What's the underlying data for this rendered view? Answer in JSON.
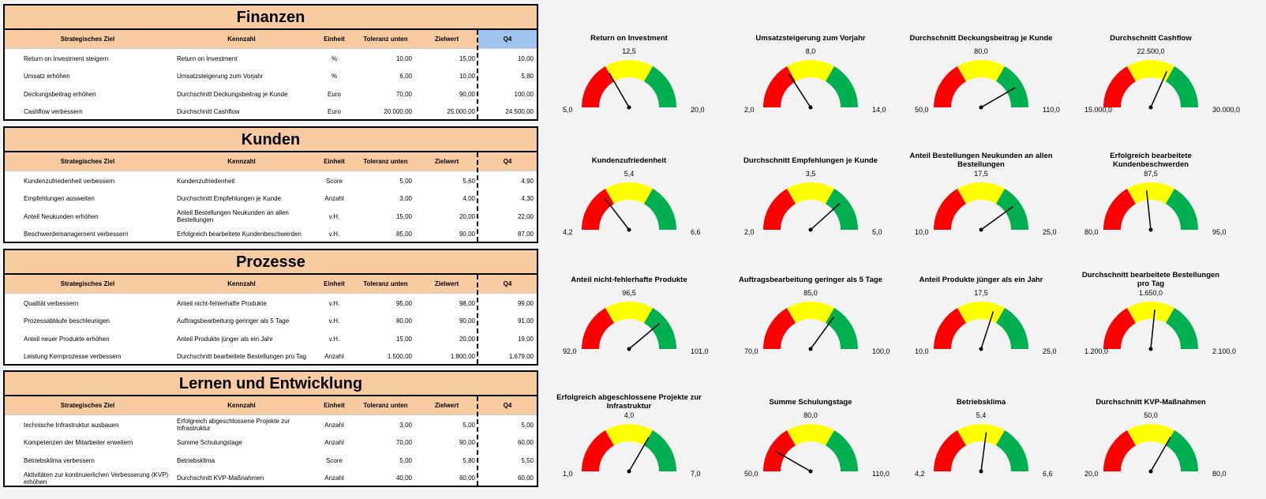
{
  "columns": [
    "Strategisches Ziel",
    "Kennzahl",
    "Einheit",
    "Toleranz unten",
    "Zielwert",
    "Q4"
  ],
  "sections": [
    {
      "title": "Finanzen",
      "rows": [
        [
          "Return on Investment steigern",
          "Return on Investment",
          "%",
          "10,00",
          "15,00",
          "10,00"
        ],
        [
          "Umsatz erhöhen",
          "Umsatzsteigerung zum Vorjahr",
          "%",
          "6,00",
          "10,00",
          "5,80"
        ],
        [
          "Deckungsbeitrag erhöhen",
          "Durchschnitt Deckungsbeitrag je Kunde",
          "Euro",
          "70,00",
          "90,00",
          "100,00"
        ],
        [
          "Cashflow verbessern",
          "Durchschnitt Cashflow",
          "Euro",
          "20.000,00",
          "25.000,00",
          "24.500,00"
        ]
      ]
    },
    {
      "title": "Kunden",
      "rows": [
        [
          "Kundenzufriedenheit verbessern",
          "Kundenzufriedenheit",
          "Score",
          "5,00",
          "5,60",
          "4,90"
        ],
        [
          "Empfehlungen ausweiten",
          "Durchschnitt Empfehlungen je Kunde",
          "Anzahl",
          "3,00",
          "4,00",
          "4,30"
        ],
        [
          "Anteil Neukunden erhöhen",
          "Anteil Bestellungen Neukunden an allen Bestellungen",
          "v.H.",
          "15,00",
          "20,00",
          "22,00"
        ],
        [
          "Beschwerdemanagement verbessern",
          "Erfolgreich bearbeitete Kundenbeschwerden",
          "v.H.",
          "85,00",
          "90,00",
          "87,00"
        ]
      ]
    },
    {
      "title": "Prozesse",
      "rows": [
        [
          "Qualität verbessern",
          "Anteil nicht-fehlerhafte Produkte",
          "v.H.",
          "95,00",
          "98,00",
          "99,00"
        ],
        [
          "Prozessabläufe beschleunigen",
          "Auftragsbearbeitung geringer als 5 Tage",
          "v.H.",
          "80,00",
          "90,00",
          "91,00"
        ],
        [
          "Anteil neuer Produkte erhöhen",
          "Anteil Produkte jünger als ein Jahr",
          "v.H.",
          "15,00",
          "20,00",
          "19,00"
        ],
        [
          "Leistung Kernprozesse verbessern",
          "Durchschnitt bearbeitete Bestellungen pro Tag",
          "Anzahl",
          "1.500,00",
          "1.800,00",
          "1.679,00"
        ]
      ]
    },
    {
      "title": "Lernen und Entwicklung",
      "rows": [
        [
          "technische Infrastruktur ausbauen",
          "Erfolgreich abgeschlossene Projekte zur Infrastruktur",
          "Anzahl",
          "3,00",
          "5,00",
          "5,00"
        ],
        [
          "Kompetenzen der Mitarbeiter erweitern",
          "Summe Schulungstage",
          "Anzahl",
          "70,00",
          "90,00",
          "60,00"
        ],
        [
          "Betriebsklima verbessern",
          "Betriebsklima",
          "Score",
          "5,00",
          "5,80",
          "5,50"
        ],
        [
          "Aktivitäten zur kontinuierlichen Verbesserung (KVP) erhöhen",
          "Durchschnitt KVP-Maßnahmen",
          "Anzahl",
          "40,00",
          "60,00",
          "60,00"
        ]
      ]
    }
  ],
  "gauges": [
    {
      "title": "Return on Investment",
      "min": {
        "value": 5,
        "label": "5,0"
      },
      "mid": {
        "value": 12.5,
        "label": "12,5"
      },
      "max": {
        "value": 20,
        "label": "20,0"
      },
      "value": 10
    },
    {
      "title": "Umsatzsteigerung zum Vorjahr",
      "min": {
        "value": 2,
        "label": "2,0"
      },
      "mid": {
        "value": 8,
        "label": "8,0"
      },
      "max": {
        "value": 14,
        "label": "14,0"
      },
      "value": 5.8
    },
    {
      "title": "Durchschnitt Deckungsbeitrag je Kunde",
      "min": {
        "value": 50,
        "label": "50,0"
      },
      "mid": {
        "value": 80,
        "label": "80,0"
      },
      "max": {
        "value": 110,
        "label": "110,0"
      },
      "value": 100
    },
    {
      "title": "Durchschnitt Cashflow",
      "min": {
        "value": 15000,
        "label": "15.000,0"
      },
      "mid": {
        "value": 22500,
        "label": "22.500,0"
      },
      "max": {
        "value": 30000,
        "label": "30.000,0"
      },
      "value": 24500
    },
    {
      "title": "Kundenzufriedenheit",
      "min": {
        "value": 4.2,
        "label": "4,2"
      },
      "mid": {
        "value": 5.4,
        "label": "5,4"
      },
      "max": {
        "value": 6.6,
        "label": "6,6"
      },
      "value": 4.9
    },
    {
      "title": "Durchschnitt Empfehlungen je Kunde",
      "min": {
        "value": 2,
        "label": "2,0"
      },
      "mid": {
        "value": 3.5,
        "label": "3,5"
      },
      "max": {
        "value": 5,
        "label": "5,0"
      },
      "value": 4.3
    },
    {
      "title": "Anteil Bestellungen Neukunden an allen Bestellungen",
      "min": {
        "value": 10,
        "label": "10,0"
      },
      "mid": {
        "value": 17.5,
        "label": "17,5"
      },
      "max": {
        "value": 25,
        "label": "25,0"
      },
      "value": 22
    },
    {
      "title": "Erfolgreich bearbeitete Kundenbeschwerden",
      "min": {
        "value": 80,
        "label": "80,0"
      },
      "mid": {
        "value": 87.5,
        "label": "87,5"
      },
      "max": {
        "value": 95,
        "label": "95,0"
      },
      "value": 87
    },
    {
      "title": "Anteil nicht-fehlerhafte Produkte",
      "min": {
        "value": 92,
        "label": "92,0"
      },
      "mid": {
        "value": 96.5,
        "label": "96,5"
      },
      "max": {
        "value": 101,
        "label": "101,0"
      },
      "value": 99
    },
    {
      "title": "Auftragsbearbeitung geringer als 5 Tage",
      "min": {
        "value": 70,
        "label": "70,0"
      },
      "mid": {
        "value": 85,
        "label": "85,0"
      },
      "max": {
        "value": 100,
        "label": "100,0"
      },
      "value": 91
    },
    {
      "title": "Anteil Produkte jünger als ein Jahr",
      "min": {
        "value": 10,
        "label": "10,0"
      },
      "mid": {
        "value": 17.5,
        "label": "17,5"
      },
      "max": {
        "value": 25,
        "label": "25,0"
      },
      "value": 19
    },
    {
      "title": "Durchschnitt bearbeitete Bestellungen pro Tag",
      "min": {
        "value": 1200,
        "label": "1.200,0"
      },
      "mid": {
        "value": 1650,
        "label": "1.650,0"
      },
      "max": {
        "value": 2100,
        "label": "2.100,0"
      },
      "value": 1679
    },
    {
      "title": "Erfolgreich abgeschlossene Projekte zur Infrastruktur",
      "min": {
        "value": 1,
        "label": "1,0"
      },
      "mid": {
        "value": 4,
        "label": "4,0"
      },
      "max": {
        "value": 7,
        "label": "7,0"
      },
      "value": 5
    },
    {
      "title": "Summe Schulungstage",
      "min": {
        "value": 50,
        "label": "50,0"
      },
      "mid": {
        "value": 80,
        "label": "80,0"
      },
      "max": {
        "value": 110,
        "label": "110,0"
      },
      "value": 60
    },
    {
      "title": "Betriebsklima",
      "min": {
        "value": 4.2,
        "label": "4,2"
      },
      "mid": {
        "value": 5.4,
        "label": "5,4"
      },
      "max": {
        "value": 6.6,
        "label": "6,6"
      },
      "value": 5.5
    },
    {
      "title": "Durchschnitt KVP-Maßnahmen",
      "min": {
        "value": 20,
        "label": "20,0"
      },
      "mid": {
        "value": 50,
        "label": "50,0"
      },
      "max": {
        "value": 80,
        "label": "80,0"
      },
      "value": 60
    }
  ]
}
